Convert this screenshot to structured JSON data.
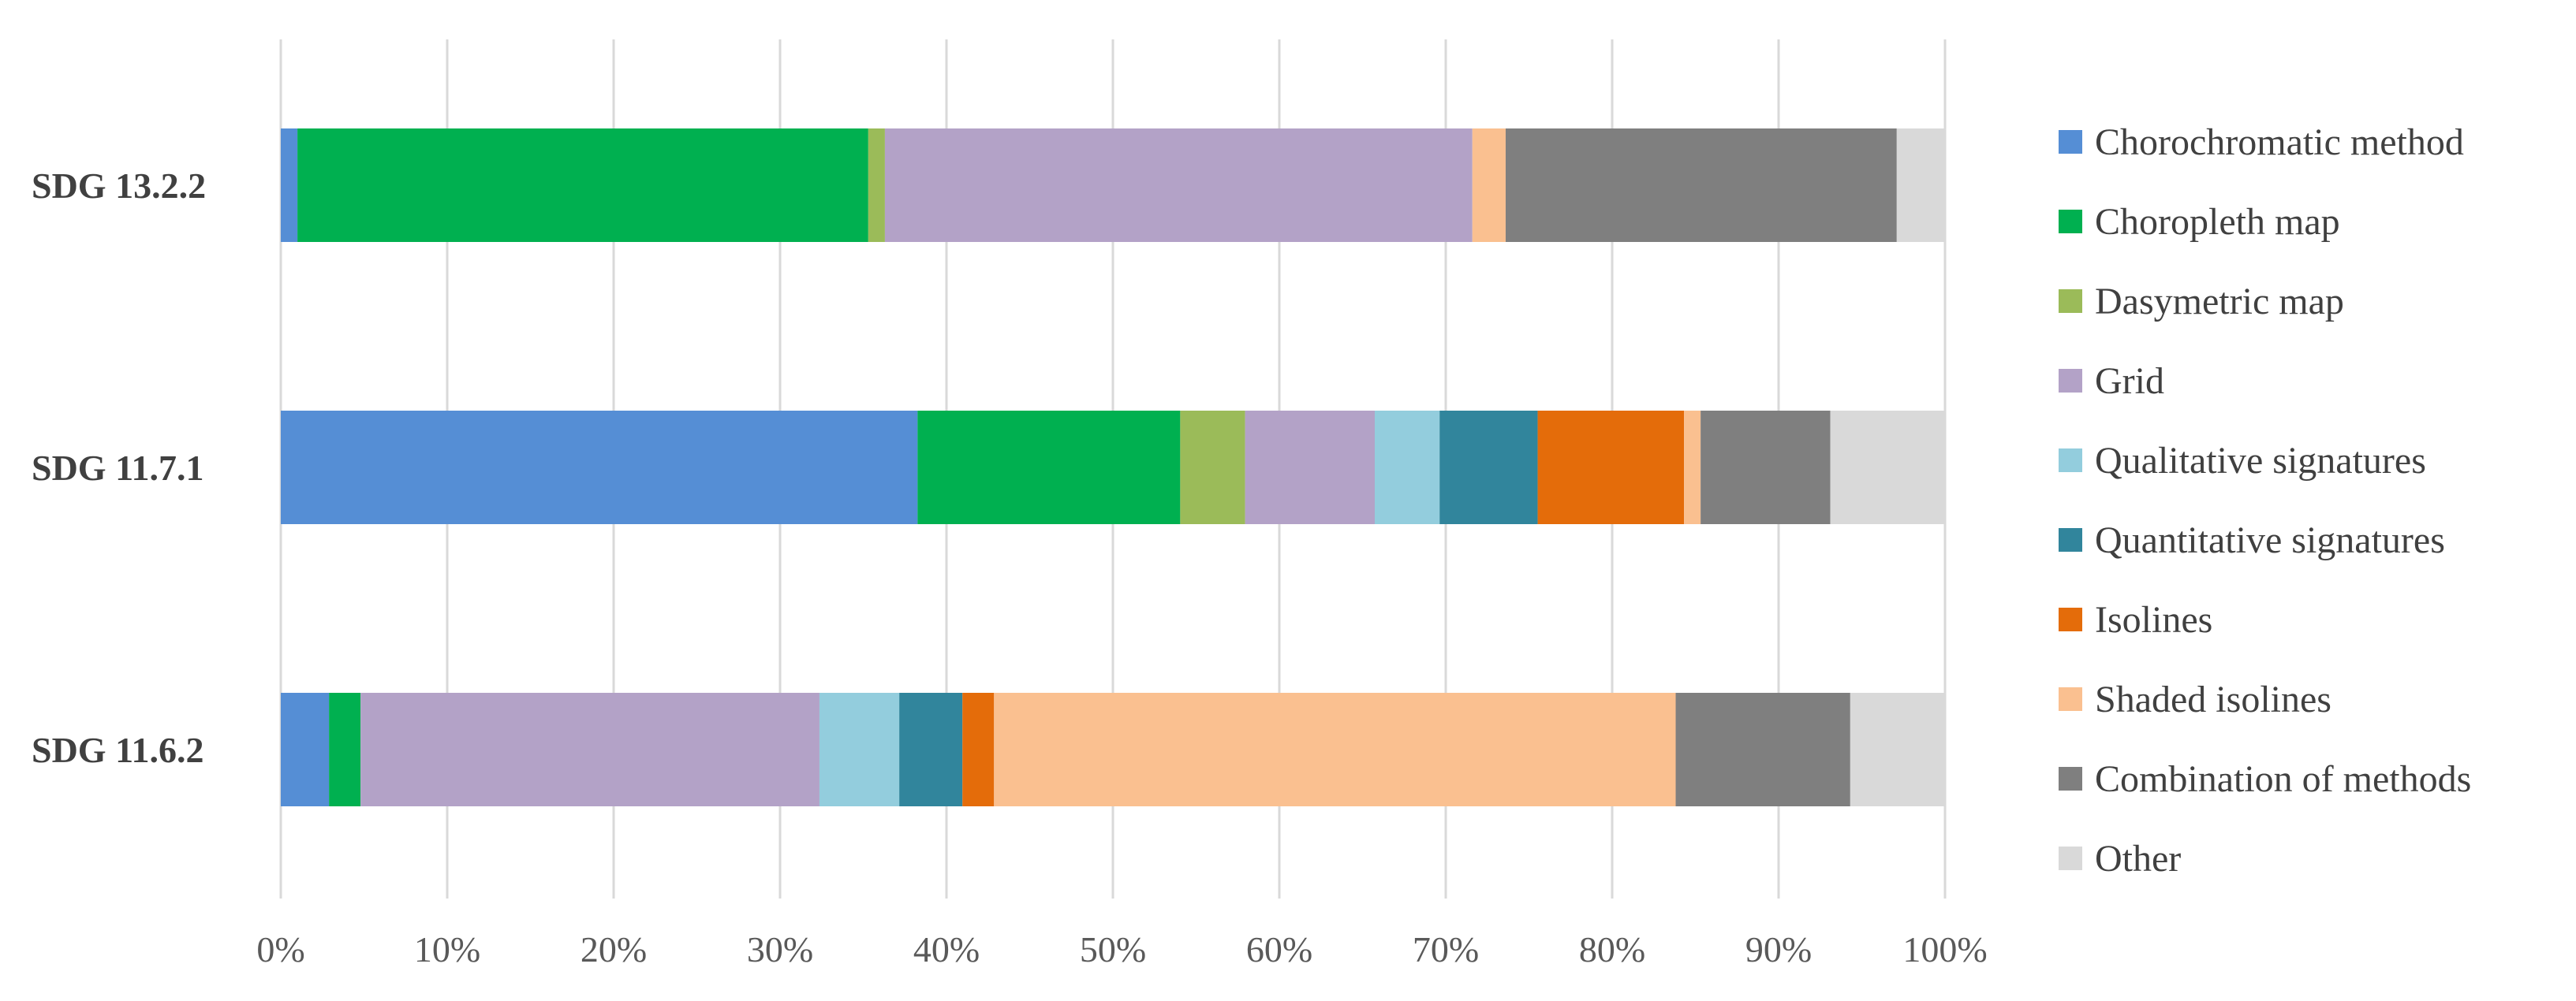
{
  "chart_data": {
    "type": "bar",
    "orientation": "horizontal",
    "stacked": "100%",
    "categories": [
      "SDG 13.2.2",
      "SDG 11.7.1",
      "SDG 11.6.2"
    ],
    "xlim": [
      0,
      100
    ],
    "x_ticks": [
      "0%",
      "10%",
      "20%",
      "30%",
      "40%",
      "50%",
      "60%",
      "70%",
      "80%",
      "90%",
      "100%"
    ],
    "grid": true,
    "legend_position": "right",
    "series": [
      {
        "name": "Chorochromatic method",
        "color": "#558ed5",
        "values": [
          1.0,
          38.3,
          2.9
        ]
      },
      {
        "name": "Choropleth map",
        "color": "#00b050",
        "values": [
          34.3,
          15.8,
          1.9
        ]
      },
      {
        "name": "Dasymetric map",
        "color": "#9bbb59",
        "values": [
          1.0,
          3.9,
          0.0
        ]
      },
      {
        "name": "Grid",
        "color": "#b3a2c7",
        "values": [
          35.3,
          7.8,
          27.6
        ]
      },
      {
        "name": "Qualitative signatures",
        "color": "#93cddd",
        "values": [
          0.0,
          3.9,
          4.8
        ]
      },
      {
        "name": "Quantitative signatures",
        "color": "#31859c",
        "values": [
          0.0,
          5.9,
          3.8
        ]
      },
      {
        "name": "Isolines",
        "color": "#e46c0a",
        "values": [
          0.0,
          8.8,
          1.9
        ]
      },
      {
        "name": "Shaded isolines",
        "color": "#fac090",
        "values": [
          2.0,
          1.0,
          41.0
        ]
      },
      {
        "name": "Combination of methods",
        "color": "#7f7f7f",
        "values": [
          23.5,
          7.8,
          10.5
        ]
      },
      {
        "name": "Other",
        "color": "#d9d9d9",
        "values": [
          2.9,
          6.9,
          5.7
        ]
      }
    ]
  }
}
